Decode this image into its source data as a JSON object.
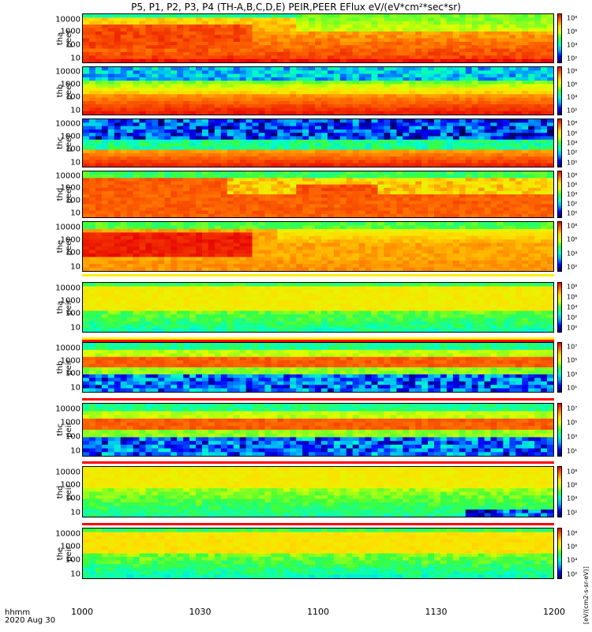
{
  "title": "P5, P1, P2, P3, P4 (TH-A,B,C,D,E) PEIR,PEER EFlux eV/(eV*cm²*sec*sr)",
  "x_axis": {
    "corner_top": "hhmm",
    "corner_bottom": "2020 Aug 30",
    "ticks": [
      "1000",
      "1030",
      "1100",
      "1130",
      "1200"
    ]
  },
  "colorbar_label": "[eV/(cm2-s-sr-eV)]",
  "panels": [
    {
      "probe": "tha",
      "species": "peer",
      "yticks": [
        "10000",
        "1000",
        "100",
        "10"
      ],
      "cbticks": [
        "10⁸",
        "10⁶",
        "10⁴",
        "10²"
      ]
    },
    {
      "probe": "thb",
      "species": "peer",
      "yticks": [
        "10000",
        "1000",
        "100",
        "10"
      ],
      "cbticks": [
        "10⁸",
        "10⁶",
        "10⁴",
        "10²"
      ]
    },
    {
      "probe": "thc",
      "species": "peer",
      "yticks": [
        "10000",
        "1000",
        "100",
        "10"
      ],
      "cbticks": [
        "10⁸",
        "10⁶",
        "10⁴",
        "10²",
        "10⁰"
      ]
    },
    {
      "probe": "thd",
      "species": "peer",
      "yticks": [
        "10000",
        "1000",
        "100",
        "10"
      ],
      "cbticks": [
        "10⁸",
        "10⁶",
        "10⁴",
        "10²",
        "10⁰"
      ]
    },
    {
      "probe": "the",
      "species": "peer",
      "yticks": [
        "10000",
        "1000",
        "100",
        "10"
      ],
      "cbticks": [
        "10⁸",
        "10⁶",
        "10⁴",
        "10²"
      ]
    },
    {
      "probe": "tha",
      "species": "peir",
      "yticks": [
        "10000",
        "1000",
        "100",
        "10"
      ],
      "cbticks": [
        "10⁸",
        "10⁶",
        "10⁴",
        "10²",
        "10⁰"
      ]
    },
    {
      "probe": "thb",
      "species": "peir",
      "yticks": [
        "10000",
        "1000",
        "100",
        "10"
      ],
      "cbticks": [
        "10⁷",
        "10⁵",
        "10³",
        "10¹"
      ]
    },
    {
      "probe": "thc",
      "species": "peir",
      "yticks": [
        "10000",
        "1000",
        "100",
        "10"
      ],
      "cbticks": [
        "10⁷",
        "10⁵",
        "10³",
        "10¹"
      ]
    },
    {
      "probe": "thd",
      "species": "peir",
      "yticks": [
        "10000",
        "1000",
        "100",
        "10"
      ],
      "cbticks": [
        "10⁸",
        "10⁶",
        "10⁴",
        "10²"
      ]
    },
    {
      "probe": "the",
      "species": "peir",
      "yticks": [
        "10000",
        "1000",
        "100",
        "10"
      ],
      "cbticks": [
        "10⁸",
        "10⁶",
        "10⁴",
        "10²"
      ]
    }
  ],
  "chart_data": {
    "type": "heatmap",
    "title": "P5, P1, P2, P3, P4 (TH-A,B,C,D,E) PEIR,PEER EFlux eV/(eV*cm²*sec*sr)",
    "xlabel": "hhmm",
    "x_ticks": [
      "1000",
      "1030",
      "1100",
      "1130",
      "1200"
    ],
    "x_date": "2020 Aug 30",
    "ylog": true,
    "yrange": [
      5,
      30000
    ],
    "colorscale": "rainbow (blue-low to red-high)",
    "panels": [
      "tha peer",
      "thb peer",
      "thc peer",
      "thd peer",
      "the peer",
      "tha peir",
      "thb peir",
      "thc peir",
      "thd peir",
      "the peir"
    ],
    "colors": {
      "low": "#0000ff",
      "mid": "#00ff80",
      "high": "#ff0000"
    }
  }
}
